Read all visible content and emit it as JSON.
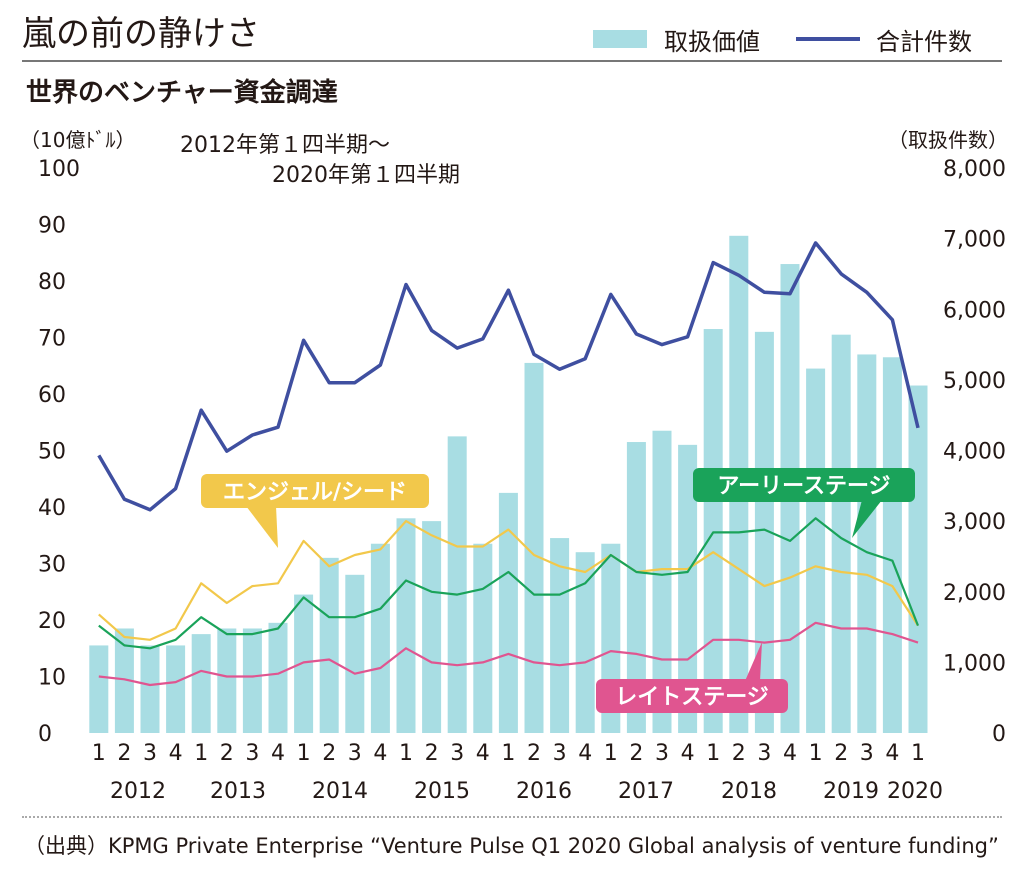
{
  "header": {
    "title": "嵐の前の静けさ",
    "subtitle": "世界のベンチャー資金調達"
  },
  "legend": {
    "bar_label": "取扱価値",
    "line_label": "合計件数"
  },
  "axis_units": {
    "left": "（10億ﾄﾞﾙ）",
    "right": "（取扱件数）"
  },
  "period_note": {
    "line1": "2012年第１四半期～",
    "line2": "2020年第１四半期"
  },
  "source": "（出典）KPMG Private Enterprise “Venture Pulse Q1 2020 Global analysis of venture funding”",
  "colors": {
    "bar": "#a8dde3",
    "total": "#3f4fa0",
    "angel": "#f2c84b",
    "early": "#1aa35a",
    "late": "#e05590"
  },
  "chart_data": {
    "type": "bar",
    "quarters": [
      "1",
      "2",
      "3",
      "4",
      "1",
      "2",
      "3",
      "4",
      "1",
      "2",
      "3",
      "4",
      "1",
      "2",
      "3",
      "4",
      "1",
      "2",
      "3",
      "4",
      "1",
      "2",
      "3",
      "4",
      "1",
      "2",
      "3",
      "4",
      "1",
      "2",
      "3",
      "4",
      "1"
    ],
    "years": [
      "2012",
      "2013",
      "2014",
      "2015",
      "2016",
      "2017",
      "2018",
      "2019",
      "2020"
    ],
    "y_left": {
      "ylim": [
        0,
        100
      ],
      "ticks": [
        "0",
        "10",
        "20",
        "30",
        "40",
        "50",
        "60",
        "70",
        "80",
        "90",
        "100"
      ]
    },
    "y_right": {
      "ylim": [
        0,
        8000
      ],
      "ticks": [
        "0",
        "1,000",
        "2,000",
        "3,000",
        "4,000",
        "5,000",
        "6,000",
        "7,000",
        "8,000"
      ]
    },
    "series": [
      {
        "name": "取扱価値",
        "type": "bar",
        "axis": "left",
        "values": [
          15.5,
          18.5,
          15.5,
          15.5,
          17.5,
          18.5,
          18.5,
          19.5,
          24.5,
          31,
          28,
          33.5,
          38,
          37.5,
          52.5,
          33.5,
          42.5,
          65.5,
          34.5,
          32,
          33.5,
          51.5,
          53.5,
          51,
          71.5,
          88,
          71,
          83,
          64.5,
          70.5,
          67,
          66.5,
          61.5
        ]
      },
      {
        "name": "合計件数",
        "type": "line",
        "axis": "right",
        "values": [
          3930,
          3310,
          3160,
          3460,
          4570,
          3990,
          4220,
          4330,
          5560,
          4960,
          4960,
          5210,
          6350,
          5700,
          5450,
          5580,
          6270,
          5360,
          5150,
          5300,
          6210,
          5650,
          5500,
          5610,
          6660,
          6480,
          6240,
          6220,
          6940,
          6500,
          6240,
          5850,
          4320
        ]
      },
      {
        "name": "エンジェル/シード",
        "type": "line",
        "axis": "left",
        "values": [
          21,
          17,
          16.5,
          18.5,
          26.5,
          23,
          26,
          26.5,
          34,
          29.5,
          31.5,
          32.5,
          37.5,
          35,
          33,
          33,
          36,
          31.5,
          29.5,
          28.5,
          31.5,
          28.5,
          29,
          29,
          32,
          29,
          26,
          27.5,
          29.5,
          28.5,
          28,
          26,
          19
        ]
      },
      {
        "name": "アーリーステージ",
        "type": "line",
        "axis": "left",
        "values": [
          19,
          15.5,
          15,
          16.5,
          20.5,
          17.5,
          17.5,
          18.5,
          24,
          20.5,
          20.5,
          22,
          27,
          25,
          24.5,
          25.5,
          28.5,
          24.5,
          24.5,
          26.5,
          31.5,
          28.5,
          28,
          28.5,
          35.5,
          35.5,
          36,
          34,
          38,
          34.5,
          32,
          30.5,
          19
        ]
      },
      {
        "name": "レイトステージ",
        "type": "line",
        "axis": "left",
        "values": [
          10,
          9.5,
          8.5,
          9,
          11,
          10,
          10,
          10.5,
          12.5,
          13,
          10.5,
          11.5,
          15,
          12.5,
          12,
          12.5,
          14,
          12.5,
          12,
          12.5,
          14.5,
          14,
          13,
          13,
          16.5,
          16.5,
          16,
          16.5,
          19.5,
          18.5,
          18.5,
          17.5,
          16
        ]
      }
    ],
    "callouts": [
      "エンジェル/シード",
      "アーリーステージ",
      "レイトステージ"
    ]
  }
}
